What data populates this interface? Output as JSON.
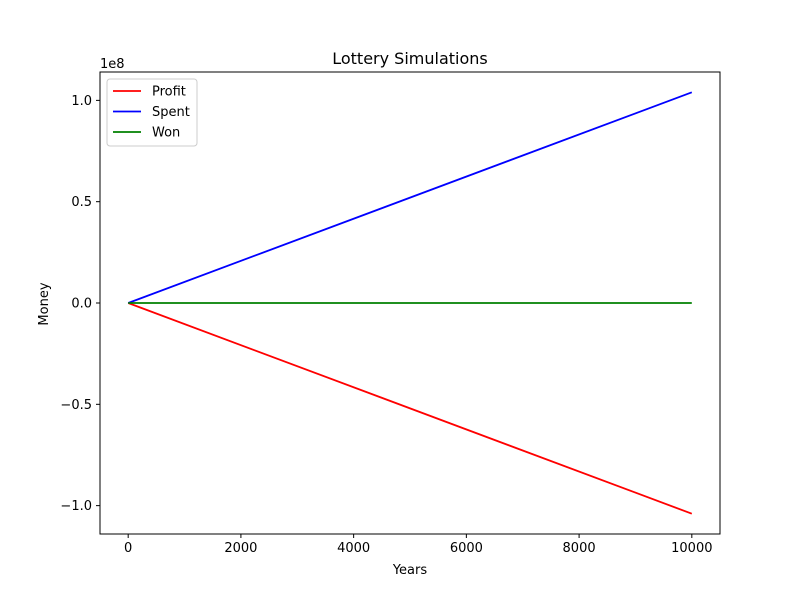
{
  "chart_data": {
    "type": "line",
    "title": "Lottery Simulations",
    "xlabel": "Years",
    "ylabel": "Money",
    "y_offset_label": "1e8",
    "xlim": [
      -500,
      10500
    ],
    "ylim": [
      -114000000,
      114000000
    ],
    "x_ticks": [
      {
        "value": 0,
        "label": "0"
      },
      {
        "value": 2000,
        "label": "2000"
      },
      {
        "value": 4000,
        "label": "4000"
      },
      {
        "value": 6000,
        "label": "6000"
      },
      {
        "value": 8000,
        "label": "8000"
      },
      {
        "value": 10000,
        "label": "10000"
      }
    ],
    "y_ticks": [
      {
        "value": 100000000,
        "label": "1.0"
      },
      {
        "value": 50000000,
        "label": "0.5"
      },
      {
        "value": 0,
        "label": "0.0"
      },
      {
        "value": -50000000,
        "label": "−0.5"
      },
      {
        "value": -100000000,
        "label": "−1.0"
      }
    ],
    "grid": false,
    "legend_position": "top-left",
    "series": [
      {
        "name": "Profit",
        "color": "#ff0000",
        "x": [
          0,
          10000
        ],
        "y": [
          0,
          -104000000
        ]
      },
      {
        "name": "Spent",
        "color": "#0000ff",
        "x": [
          0,
          10000
        ],
        "y": [
          0,
          104000000
        ]
      },
      {
        "name": "Won",
        "color": "#008000",
        "x": [
          0,
          10000
        ],
        "y": [
          0,
          0
        ]
      }
    ]
  }
}
